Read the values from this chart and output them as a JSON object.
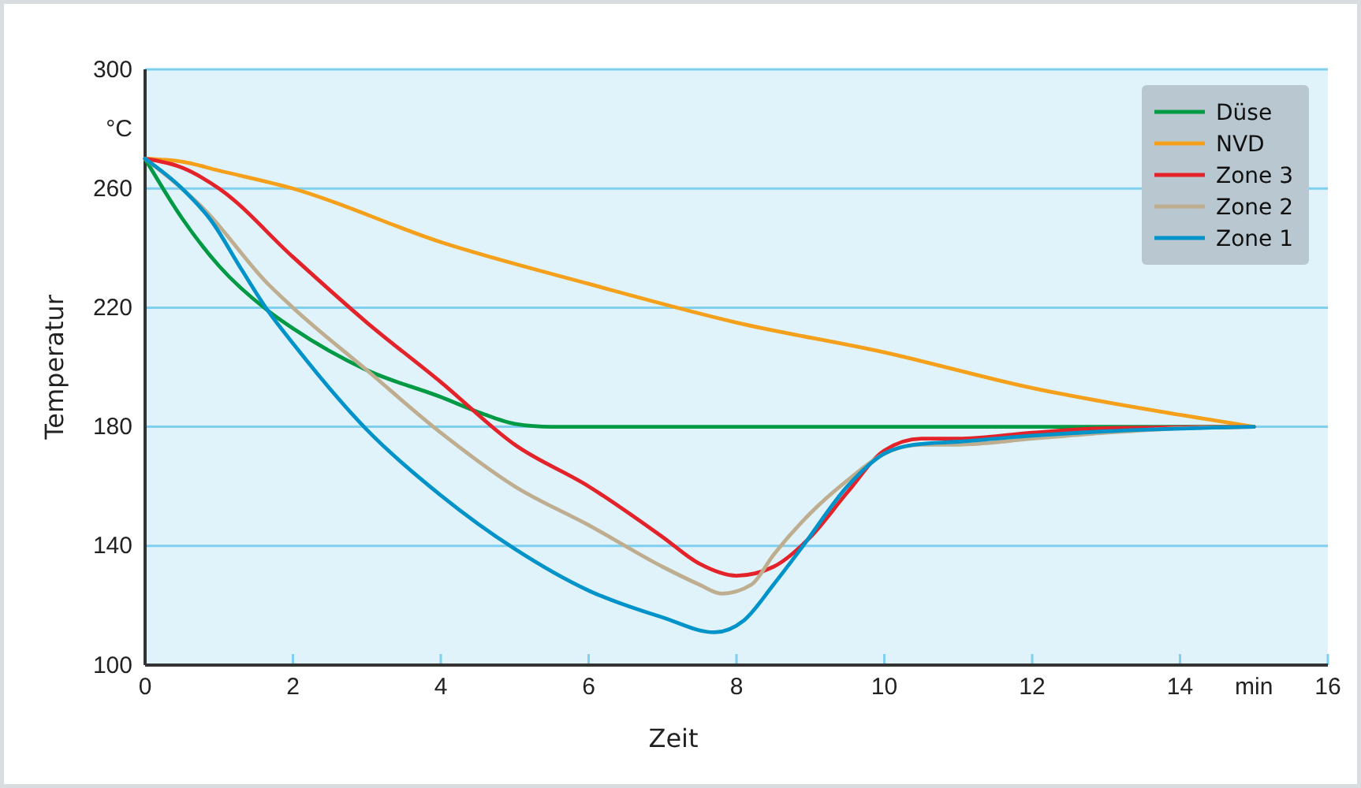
{
  "chart_data": {
    "type": "line",
    "xlabel": "Zeit",
    "ylabel": "Temperatur",
    "xlim": [
      0,
      16
    ],
    "xticks": [
      0,
      2,
      4,
      6,
      8,
      10,
      12,
      14,
      {
        "value": 15,
        "label": "min"
      },
      16
    ],
    "ylim": [
      100,
      300
    ],
    "yticks": [
      100,
      140,
      180,
      220,
      260,
      300,
      {
        "value": 280,
        "label": "°C"
      }
    ],
    "grid": "y",
    "legend": "top right",
    "line_style": "solid",
    "marker": "none",
    "series": [
      {
        "name": "Düse",
        "color": "#009a44",
        "x": [
          0,
          0.5,
          1,
          1.66,
          2,
          3,
          4,
          4.5,
          5,
          5.5,
          15
        ],
        "values": [
          270,
          250,
          234,
          219,
          213,
          199,
          190,
          185,
          181,
          180,
          180
        ]
      },
      {
        "name": "NVD",
        "color": "#f5a01a",
        "x": [
          0,
          0.5,
          1,
          2,
          4,
          6,
          8,
          10,
          12,
          14,
          15
        ],
        "values": [
          270,
          269,
          266,
          260,
          242,
          228,
          215,
          205,
          193,
          184,
          180
        ]
      },
      {
        "name": "Zone 3",
        "color": "#e42229",
        "x": [
          0,
          0.5,
          1,
          2,
          3,
          4,
          5,
          6,
          7,
          7.5,
          8,
          8.5,
          9,
          9.5,
          10,
          10.5,
          11,
          12,
          13,
          15
        ],
        "values": [
          270,
          267,
          260,
          237,
          215,
          195,
          174,
          160,
          143,
          134,
          130,
          133,
          143,
          158,
          172,
          176,
          176,
          178,
          179.5,
          180
        ]
      },
      {
        "name": "Zone 2",
        "color": "#bfad8f",
        "x": [
          0,
          0.8,
          1.66,
          2,
          3,
          4,
          5,
          6,
          7,
          7.5,
          7.8,
          8.2,
          8.5,
          9,
          9.5,
          10,
          10.5,
          11,
          12,
          13,
          14,
          15
        ],
        "values": [
          270,
          253,
          228,
          220,
          199,
          178,
          160,
          147,
          133,
          127,
          124,
          127,
          137,
          151,
          162,
          171,
          174,
          174,
          176,
          178,
          179.5,
          180
        ]
      },
      {
        "name": "Zone 1",
        "color": "#0093c9",
        "x": [
          0,
          0.5,
          0.9,
          1.3,
          1.66,
          2,
          3,
          4,
          5,
          6,
          7,
          7.7,
          8.1,
          8.5,
          8.9,
          9.5,
          10,
          10.4,
          11,
          12,
          13,
          15
        ],
        "values": [
          270,
          260,
          249,
          233,
          219,
          208,
          179,
          157,
          139,
          125,
          116,
          111,
          115,
          127,
          140,
          160,
          171,
          174,
          175,
          177,
          178.5,
          180
        ]
      }
    ]
  }
}
